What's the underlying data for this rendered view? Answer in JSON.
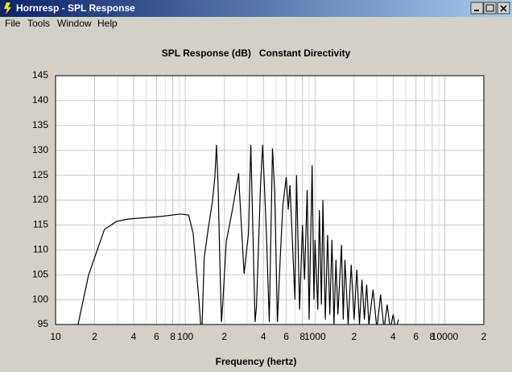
{
  "window": {
    "title": "Hornresp - SPL Response",
    "menu": [
      "File",
      "Tools",
      "Window",
      "Help"
    ]
  },
  "chart_data": {
    "type": "line",
    "title": "SPL Response (dB)   Constant Directivity",
    "x_label": "Frequency (hertz)",
    "xscale": "log",
    "xlim": [
      10,
      20000
    ],
    "xticks": [
      10,
      {
        "value": 20,
        "label": "2"
      },
      {
        "value": 40,
        "label": "4"
      },
      {
        "value": 60,
        "label": "6"
      },
      {
        "value": 80,
        "label": "8"
      },
      100,
      {
        "value": 200,
        "label": "2"
      },
      {
        "value": 400,
        "label": "4"
      },
      {
        "value": 600,
        "label": "6"
      },
      {
        "value": 800,
        "label": "8"
      },
      1000,
      {
        "value": 2000,
        "label": "2"
      },
      {
        "value": 4000,
        "label": "4"
      },
      {
        "value": 6000,
        "label": "6"
      },
      {
        "value": 8000,
        "label": "8"
      },
      10000,
      {
        "value": 20000,
        "label": "2"
      }
    ],
    "x_minor_grid": [
      30,
      50,
      70,
      90,
      300,
      500,
      700,
      900,
      3000,
      5000,
      7000,
      9000
    ],
    "ylim": [
      95,
      145
    ],
    "yticks": [
      95,
      100,
      105,
      110,
      115,
      120,
      125,
      130,
      135,
      140,
      145
    ],
    "grid": true,
    "x": [
      14.9,
      18,
      23.8,
      29.4,
      36.4,
      64.4,
      91.8,
      106,
      115,
      127,
      131,
      134,
      140,
      150,
      162,
      169,
      174,
      179,
      185,
      190,
      194,
      207,
      231,
      258,
      261,
      284,
      307,
      320,
      345,
      354,
      380,
      395,
      422,
      444,
      470,
      489,
      513,
      541,
      565,
      600,
      622,
      641,
      678,
      700,
      720,
      760,
      800,
      830,
      870,
      900,
      950,
      980,
      1000,
      1050,
      1080,
      1120,
      1150,
      1200,
      1250,
      1300,
      1350,
      1400,
      1450,
      1500,
      1600,
      1650,
      1700,
      1800,
      1900,
      2000,
      2100,
      2200,
      2300,
      2400,
      2500,
      2600,
      2800,
      3000,
      3200,
      3400,
      3600,
      3800,
      4000,
      4200,
      4400
    ],
    "series": [
      {
        "color": "#000000",
        "values": [
          95,
          105,
          114.1,
          115.7,
          116.2,
          116.7,
          117.2,
          117,
          113.3,
          100.3,
          95.5,
          93,
          108.4,
          114.1,
          119.8,
          124.6,
          131.1,
          123,
          106.8,
          95.5,
          98.7,
          111.7,
          118.1,
          125.4,
          122.2,
          105.2,
          113.3,
          131.1,
          95.5,
          98.7,
          123,
          131.1,
          113.3,
          95.5,
          130.4,
          121.4,
          95.5,
          109.2,
          118.9,
          124.6,
          118.1,
          123,
          108.4,
          100,
          125,
          98,
          115,
          104,
          122,
          96,
          127,
          100,
          112,
          98,
          118,
          99,
          120,
          96,
          113,
          97,
          112,
          95,
          108,
          97,
          111,
          96,
          108,
          95,
          107,
          96,
          106,
          95,
          104,
          96,
          103,
          95,
          102,
          94,
          101,
          94,
          99,
          94,
          97,
          94,
          96
        ]
      }
    ]
  }
}
